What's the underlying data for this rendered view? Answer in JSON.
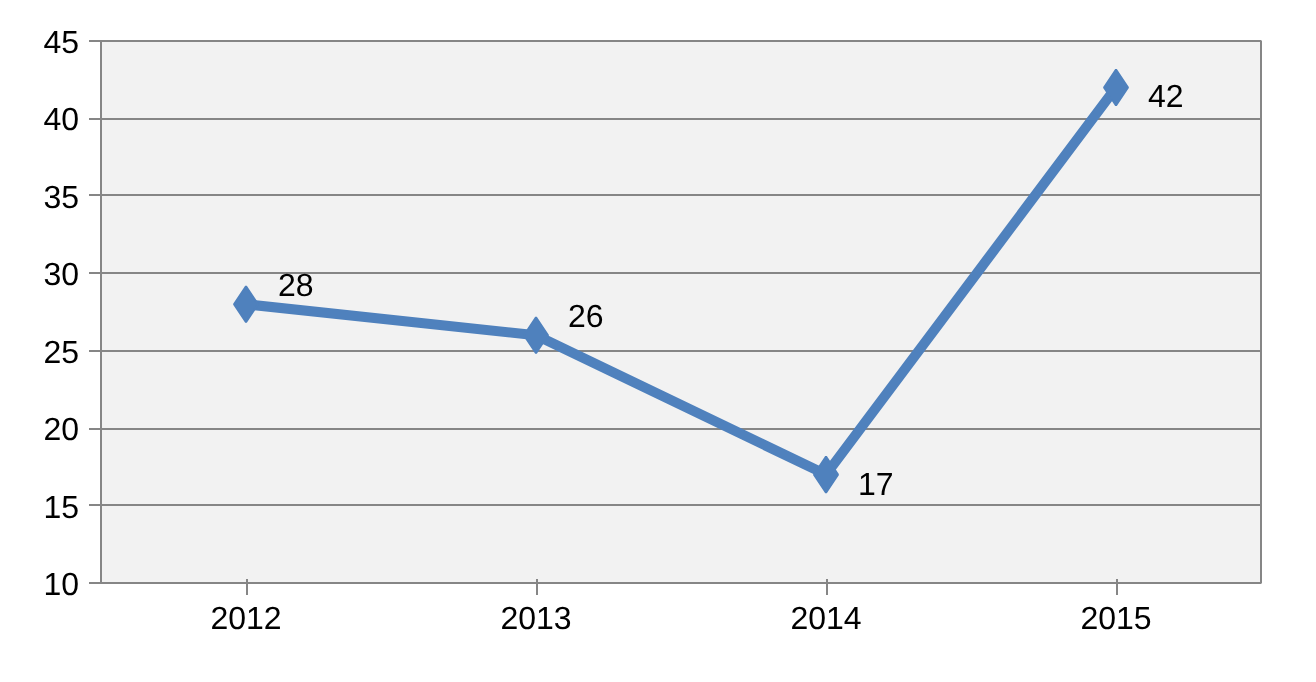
{
  "chart_data": {
    "type": "line",
    "categories": [
      "2012",
      "2013",
      "2014",
      "2015"
    ],
    "series": [
      {
        "color": "#4f81bd",
        "values": [
          28,
          26,
          17,
          42
        ]
      }
    ],
    "ylim": [
      10,
      45
    ],
    "yticks": [
      10,
      15,
      20,
      25,
      30,
      35,
      40,
      45
    ],
    "grid": "y",
    "marker": "diamond",
    "line_style": "solid",
    "data_labels": true
  }
}
